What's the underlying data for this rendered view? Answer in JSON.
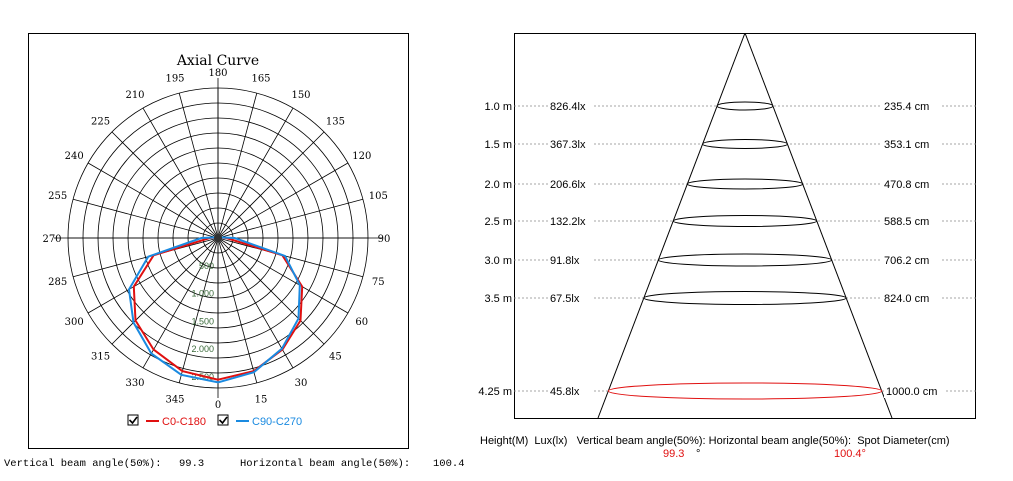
{
  "polar": {
    "title": "Axial Curve",
    "angle_labels": [
      "180",
      "195",
      "210",
      "225",
      "240",
      "255",
      "270",
      "285",
      "300",
      "315",
      "330",
      "345",
      "0",
      "15",
      "30",
      "45",
      "60",
      "75",
      "90",
      "105",
      "120",
      "135",
      "150",
      "165"
    ],
    "radial_labels": [
      "500",
      "1.000",
      "1.500",
      "2.000",
      "2.500"
    ],
    "legend": [
      {
        "name": "C0-C180",
        "color": "#e01010",
        "checked": "☑"
      },
      {
        "name": "C90-C270",
        "color": "#1a8ae0",
        "checked": "☑"
      }
    ],
    "footer": {
      "vertical_label": "Vertical beam angle(50%):",
      "vertical_value": "99.3",
      "horizontal_label": "Horizontal beam angle(50%):",
      "horizontal_value": "100.4"
    }
  },
  "cone": {
    "rows": [
      {
        "height": "1.0 m",
        "lux": "826.4lx",
        "diameter": "235.4 cm"
      },
      {
        "height": "1.5 m",
        "lux": "367.3lx",
        "diameter": "353.1 cm"
      },
      {
        "height": "2.0 m",
        "lux": "206.6lx",
        "diameter": "470.8 cm"
      },
      {
        "height": "2.5 m",
        "lux": "132.2lx",
        "diameter": "588.5 cm"
      },
      {
        "height": "3.0 m",
        "lux": "91.8lx",
        "diameter": "706.2 cm"
      },
      {
        "height": "3.5 m",
        "lux": "67.5lx",
        "diameter": "824.0 cm"
      },
      {
        "height": "4.25 m",
        "lux": "45.8lx",
        "diameter": "1000.0 cm"
      }
    ],
    "footer": {
      "headers": "Height(M)  Lux(lx)   Vertical beam angle(50%): Horizontal beam angle(50%):  Spot Diameter(cm)",
      "vertical_value": "99.3",
      "degree": "°",
      "horizontal_value": "100.4°"
    },
    "highlight_color": "#e01010"
  },
  "chart_data": [
    {
      "type": "polar-line",
      "title": "Axial Curve",
      "angles_deg": [
        0,
        15,
        30,
        45,
        60,
        75,
        90,
        105,
        120,
        135,
        150,
        165,
        180,
        195,
        210,
        225,
        240,
        255,
        270,
        285,
        300,
        315,
        330,
        345
      ],
      "rlim": [
        0,
        2700
      ],
      "series": [
        {
          "name": "C0-C180",
          "values": [
            2550,
            2480,
            2320,
            2100,
            1750,
            1200,
            150,
            40,
            20,
            15,
            10,
            10,
            10,
            10,
            10,
            15,
            20,
            40,
            150,
            1200,
            1750,
            2100,
            2320,
            2480
          ]
        },
        {
          "name": "C90-C270",
          "values": [
            2600,
            2500,
            2300,
            2050,
            1700,
            1250,
            300,
            40,
            20,
            15,
            10,
            10,
            10,
            10,
            10,
            15,
            20,
            40,
            300,
            1300,
            1850,
            2150,
            2400,
            2550
          ]
        }
      ]
    },
    {
      "type": "table",
      "title": "",
      "columns": [
        "Height(M)",
        "Lux(lx)",
        "Spot Diameter(cm)"
      ],
      "rows": [
        [
          "1.0 m",
          "826.4lx",
          "235.4 cm"
        ],
        [
          "1.5 m",
          "367.3lx",
          "353.1 cm"
        ],
        [
          "2.0 m",
          "206.6lx",
          "470.8 cm"
        ],
        [
          "2.5 m",
          "132.2lx",
          "588.5 cm"
        ],
        [
          "3.0 m",
          "91.8lx",
          "706.2 cm"
        ],
        [
          "3.5 m",
          "67.5lx",
          "824.0 cm"
        ],
        [
          "4.25 m",
          "45.8lx",
          "1000.0 cm"
        ]
      ],
      "vertical_beam_angle": 99.3,
      "horizontal_beam_angle": 100.4
    }
  ]
}
